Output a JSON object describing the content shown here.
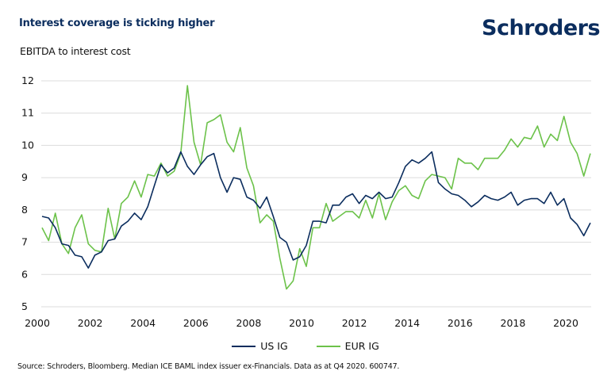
{
  "header": {
    "title": "Interest coverage is ticking higher",
    "subtitle": "EBITDA to interest cost",
    "logo": "Schroders"
  },
  "footer": {
    "source": "Source: Schroders, Bloomberg. Median ICE BAML index issuer ex-Financials. Data as at Q4 2020. 600747."
  },
  "colors": {
    "brand": "#0b2d5e",
    "us_ig": "#0b2d5e",
    "eur_ig": "#6cc24a",
    "grid": "#dcdcdc"
  },
  "chart_data": {
    "type": "line",
    "title": "Interest coverage is ticking higher",
    "ylabel": "EBITDA to interest cost",
    "xlabel": "",
    "frequency": "quarterly",
    "x_start": "2000 Q1",
    "x_end": "2020 Q4",
    "xlim": [
      2000,
      2020.75
    ],
    "ylim": [
      5,
      12
    ],
    "grid": true,
    "legend_position": "bottom-center",
    "x_ticks": [
      "2000",
      "2002",
      "2004",
      "2006",
      "2008",
      "2010",
      "2012",
      "2014",
      "2016",
      "2018",
      "2020"
    ],
    "y_ticks": [
      "5",
      "6",
      "7",
      "8",
      "9",
      "10",
      "11",
      "12"
    ],
    "series": [
      {
        "name": "US IG",
        "color": "#0b2d5e",
        "values": [
          7.8,
          7.75,
          7.45,
          6.95,
          6.9,
          6.6,
          6.55,
          6.2,
          6.6,
          6.7,
          7.05,
          7.1,
          7.5,
          7.65,
          7.9,
          7.7,
          8.1,
          8.75,
          9.4,
          9.15,
          9.3,
          9.8,
          9.35,
          9.1,
          9.4,
          9.65,
          9.75,
          9.0,
          8.55,
          9.0,
          8.95,
          8.4,
          8.3,
          8.05,
          8.4,
          7.8,
          7.15,
          7.0,
          6.45,
          6.55,
          6.9,
          7.65,
          7.65,
          7.6,
          8.15,
          8.15,
          8.4,
          8.5,
          8.2,
          8.45,
          8.35,
          8.55,
          8.35,
          8.4,
          8.85,
          9.35,
          9.55,
          9.45,
          9.6,
          9.8,
          8.85,
          8.65,
          8.5,
          8.45,
          8.3,
          8.1,
          8.25,
          8.45,
          8.35,
          8.3,
          8.4,
          8.55,
          8.15,
          8.3,
          8.35,
          8.35,
          8.2,
          8.55,
          8.15,
          8.35,
          7.75,
          7.55,
          7.2,
          7.6
        ]
      },
      {
        "name": "EUR IG",
        "color": "#6cc24a",
        "values": [
          7.45,
          7.05,
          7.9,
          6.95,
          6.65,
          7.45,
          7.85,
          6.95,
          6.75,
          6.7,
          8.05,
          7.1,
          8.2,
          8.4,
          8.9,
          8.4,
          9.1,
          9.05,
          9.45,
          9.05,
          9.2,
          9.75,
          11.85,
          10.1,
          9.4,
          10.7,
          10.8,
          10.95,
          10.1,
          9.8,
          10.55,
          9.3,
          8.75,
          7.6,
          7.85,
          7.65,
          6.5,
          5.55,
          5.8,
          6.8,
          6.25,
          7.45,
          7.45,
          8.2,
          7.65,
          7.8,
          7.95,
          7.95,
          7.75,
          8.3,
          7.75,
          8.5,
          7.7,
          8.25,
          8.6,
          8.75,
          8.45,
          8.35,
          8.9,
          9.1,
          9.05,
          9.0,
          8.65,
          9.6,
          9.45,
          9.45,
          9.25,
          9.6,
          9.6,
          9.6,
          9.85,
          10.2,
          9.95,
          10.25,
          10.2,
          10.6,
          9.95,
          10.35,
          10.15,
          10.9,
          10.1,
          9.75,
          9.05,
          9.75
        ]
      }
    ]
  }
}
